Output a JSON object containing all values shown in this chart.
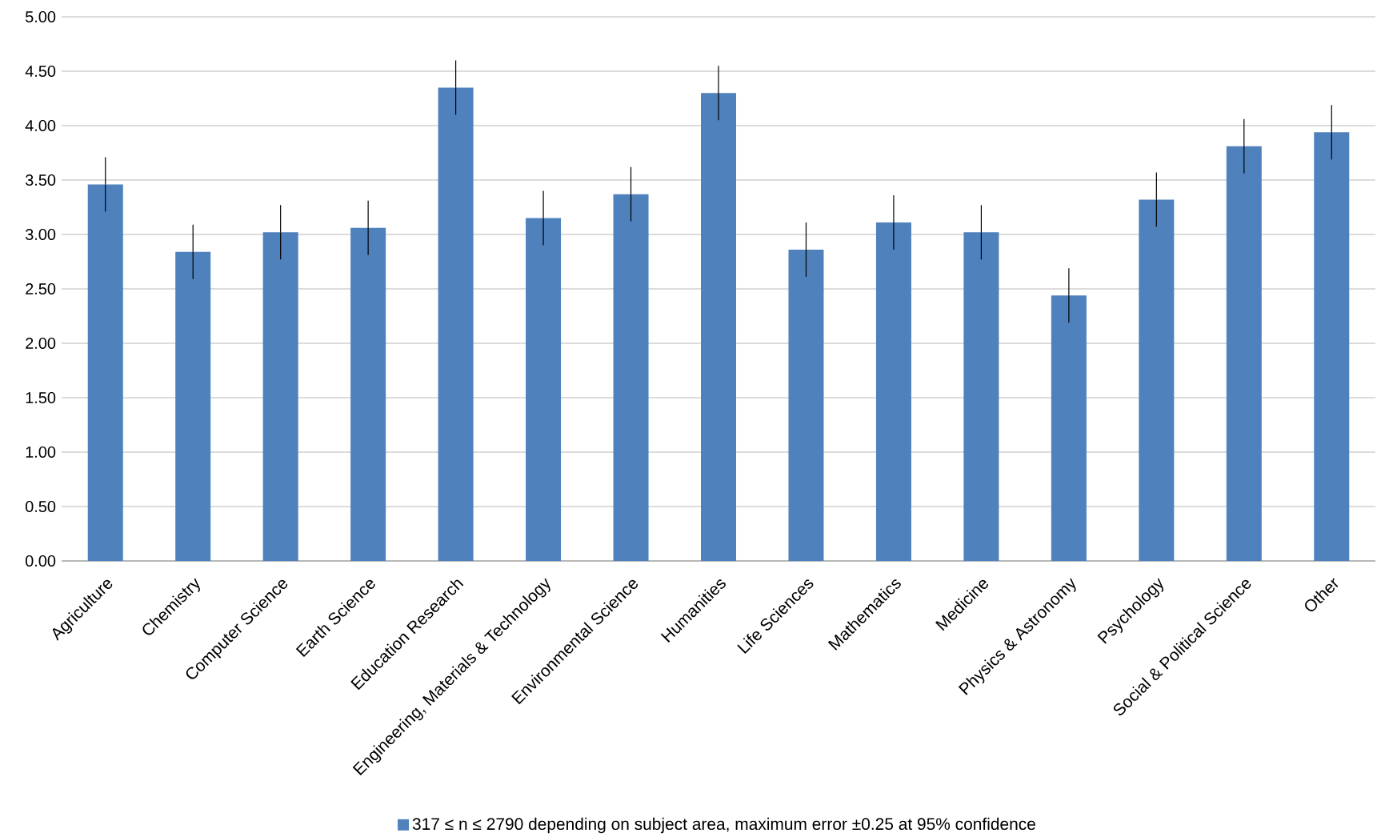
{
  "chart_data": {
    "type": "bar",
    "categories": [
      "Agriculture",
      "Chemistry",
      "Computer Science",
      "Earth Science",
      "Education Research",
      "Engineering, Materials & Technology",
      "Environmental Science",
      "Humanities",
      "Life Sciences",
      "Mathematics",
      "Medicine",
      "Physics & Astronomy",
      "Psychology",
      "Social & Political Science",
      "Other"
    ],
    "series": [
      {
        "name": "317 ≤ n ≤ 2790 depending on subject area, maximum error ±0.25 at 95% confidence",
        "color": "#4f81bd",
        "values": [
          3.46,
          2.84,
          3.02,
          3.06,
          4.35,
          3.15,
          3.37,
          4.3,
          2.86,
          3.11,
          3.02,
          2.44,
          3.32,
          3.81,
          3.94
        ],
        "errors": [
          0.25,
          0.25,
          0.25,
          0.25,
          0.25,
          0.25,
          0.25,
          0.25,
          0.25,
          0.25,
          0.25,
          0.25,
          0.25,
          0.25,
          0.25
        ]
      }
    ],
    "ylim": [
      0,
      5
    ],
    "yticks": [
      {
        "value": 0,
        "label": "0.00"
      },
      {
        "value": 0.5,
        "label": "0.50"
      },
      {
        "value": 1,
        "label": "1.00"
      },
      {
        "value": 1.5,
        "label": "1.50"
      },
      {
        "value": 2,
        "label": "2.00"
      },
      {
        "value": 2.5,
        "label": "2.50"
      },
      {
        "value": 3,
        "label": "3.00"
      },
      {
        "value": 3.5,
        "label": "3.50"
      },
      {
        "value": 4,
        "label": "4.00"
      },
      {
        "value": 4.5,
        "label": "4.50"
      },
      {
        "value": 5,
        "label": "5.00"
      }
    ],
    "grid": "y",
    "legend": "bottom"
  }
}
